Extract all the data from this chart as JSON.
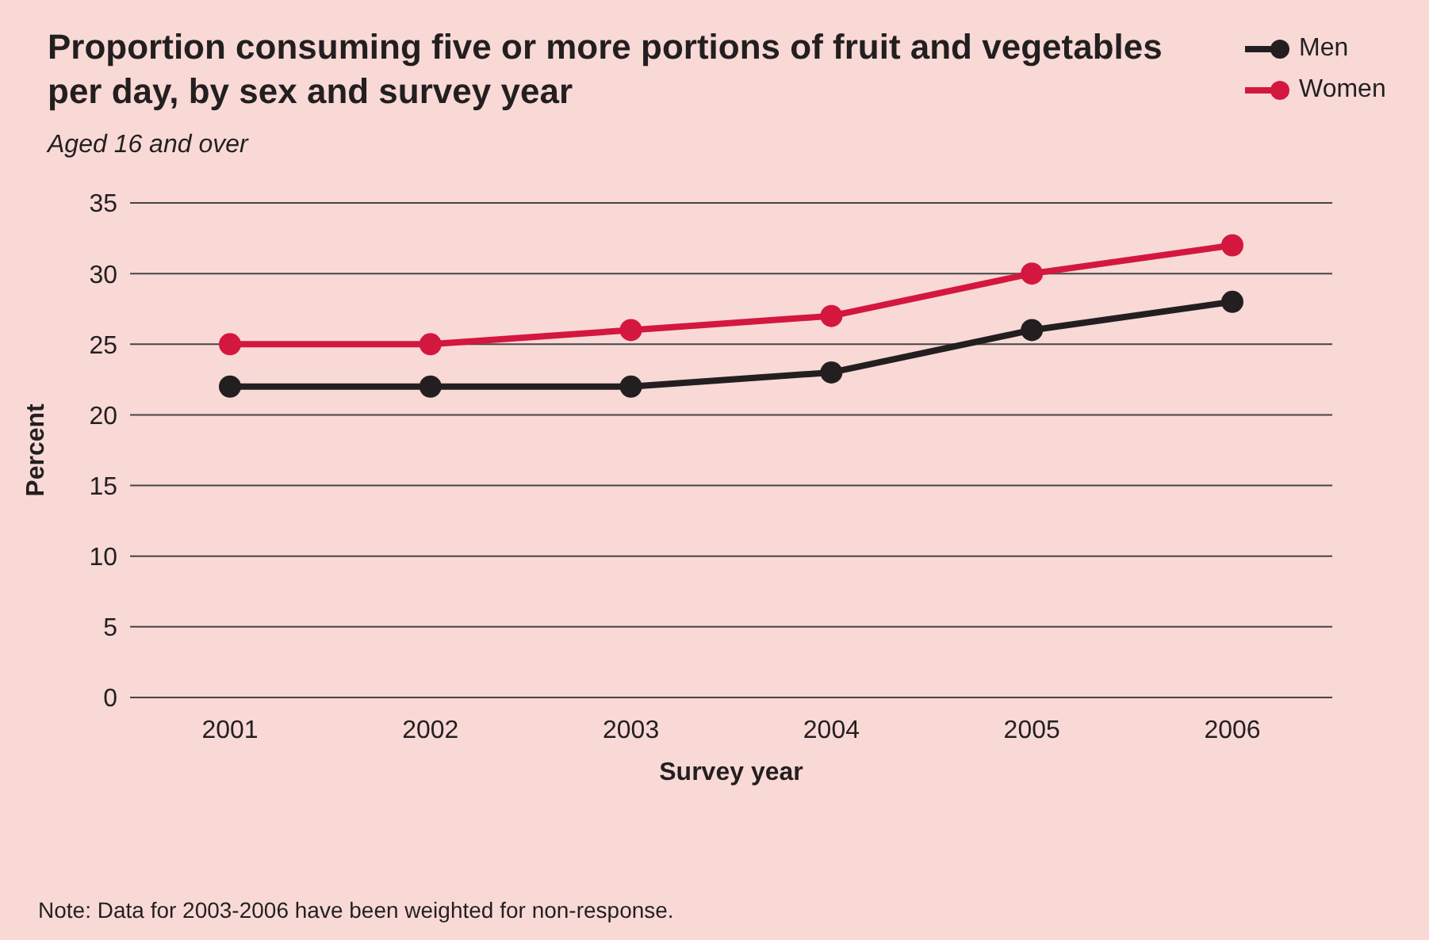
{
  "chart_data": {
    "type": "line",
    "title": "Proportion consuming five or more portions of fruit and vegetables per day, by sex and survey year",
    "subtitle": "Aged 16 and over",
    "xlabel": "Survey year",
    "ylabel": "Percent",
    "annotations": [
      "Note: Data for 2003-2006 have been weighted for non-response."
    ],
    "categories": [
      "2001",
      "2002",
      "2003",
      "2004",
      "2005",
      "2006"
    ],
    "series": [
      {
        "name": "Men",
        "color": "#231f20",
        "values": [
          22,
          22,
          22,
          23,
          26,
          28
        ]
      },
      {
        "name": "Women",
        "color": "#d4173f",
        "values": [
          25,
          25,
          26,
          27,
          30,
          32
        ]
      }
    ],
    "ylim": [
      0,
      35
    ],
    "yticks": [
      0,
      5,
      10,
      15,
      20,
      25,
      30,
      35
    ],
    "grid": "y",
    "legend": "top right",
    "marker": "circle",
    "line_style": "solid"
  }
}
